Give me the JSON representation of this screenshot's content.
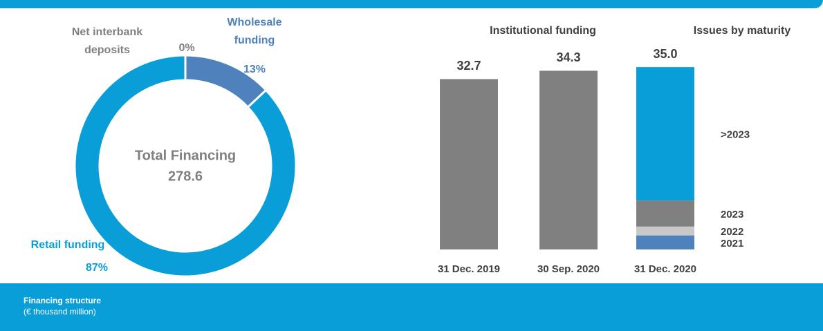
{
  "chart_data": [
    {
      "type": "pie",
      "donut": true,
      "categories": [
        "Wholesale funding",
        "Retail funding",
        "Net interbank deposits"
      ],
      "values": [
        13,
        87,
        0
      ],
      "value_labels": [
        "13%",
        "87%",
        "0%"
      ],
      "colors": [
        "#4f81bd",
        "#0a9ed9",
        "#808080"
      ],
      "center_label": "Total Financing",
      "total": 278.6
    },
    {
      "type": "bar",
      "title": "Institutional funding",
      "categories": [
        "31 Dec. 2019",
        "30 Sep. 2020",
        "31 Dec. 2020"
      ],
      "values": [
        32.7,
        34.3,
        35.0
      ],
      "value_labels": [
        "32.7",
        "34.3",
        "35.0"
      ],
      "color": "#808080",
      "breakdown": {
        "title": "Issues by maturity",
        "categories": [
          ">2023",
          "2023",
          "2022",
          "2021"
        ],
        "values": [
          25.6,
          5.0,
          1.7,
          2.7
        ],
        "colors": [
          "#0a9ed9",
          "#808080",
          "#c8c8c8",
          "#4f81bd"
        ]
      }
    }
  ],
  "footer": {
    "title": "Financing structure",
    "subtitle": "(€ thousand million)"
  }
}
